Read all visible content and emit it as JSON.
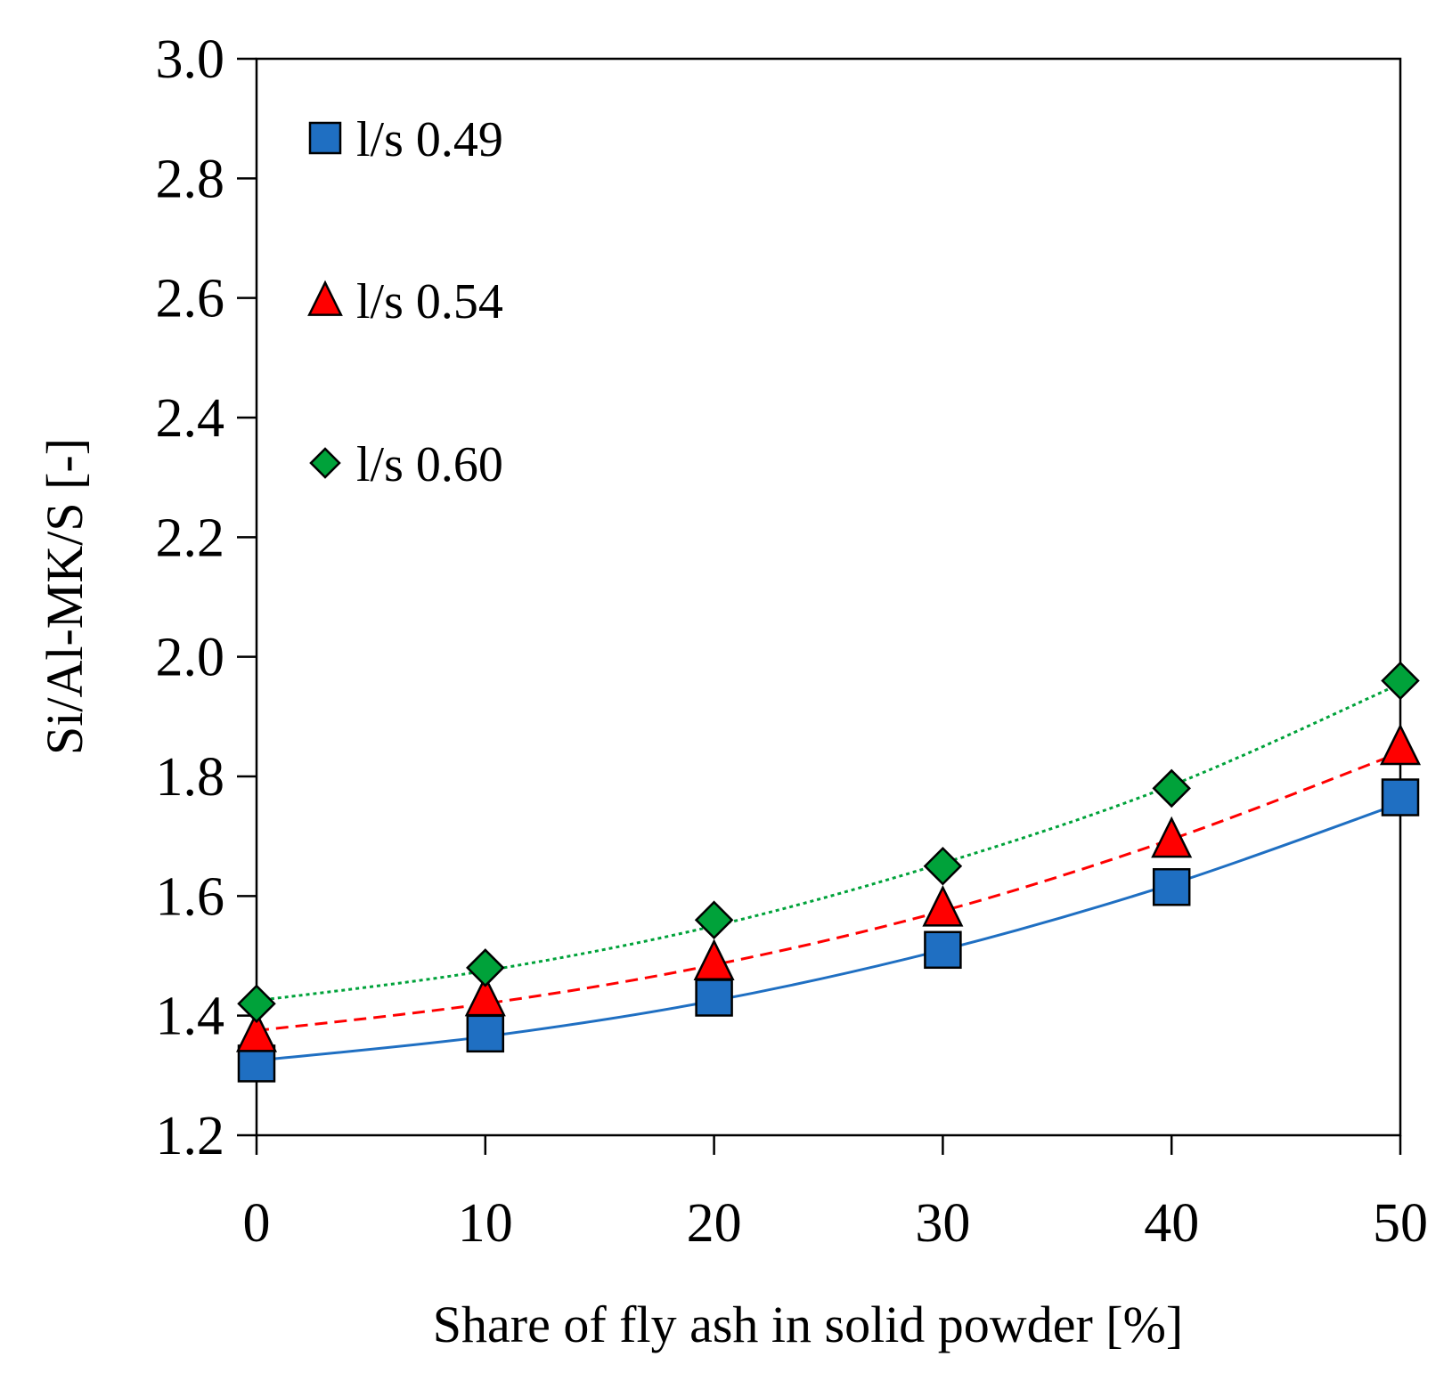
{
  "chart_data": {
    "type": "scatter",
    "title": "",
    "xlabel": "Share of fly ash in solid powder [%]",
    "ylabel": "Si/Al-MK/S [-]",
    "xlim": [
      0,
      50
    ],
    "ylim": [
      1.2,
      3.0
    ],
    "x_ticks": [
      "0",
      "10",
      "20",
      "30",
      "40",
      "50"
    ],
    "y_ticks": [
      "1.2",
      "1.4",
      "1.6",
      "1.8",
      "2.0",
      "2.2",
      "2.4",
      "2.6",
      "2.8",
      "3.0"
    ],
    "grid": false,
    "legend_position": "top-left",
    "x": [
      0,
      10,
      20,
      30,
      40,
      50
    ],
    "series": [
      {
        "name": "l/s 0.49",
        "marker": "square",
        "color": "#1f6fc2",
        "line_style": "solid",
        "values": [
          1.32,
          1.37,
          1.43,
          1.51,
          1.615,
          1.765
        ],
        "trend": [
          1.325,
          1.365,
          1.425,
          1.51,
          1.62,
          1.755
        ]
      },
      {
        "name": "l/s 0.54",
        "marker": "triangle",
        "color": "#ff0000",
        "line_style": "dashed",
        "values": [
          1.37,
          1.43,
          1.49,
          1.58,
          1.695,
          1.85
        ],
        "trend": [
          1.375,
          1.42,
          1.485,
          1.575,
          1.695,
          1.84
        ]
      },
      {
        "name": "l/s 0.60",
        "marker": "diamond",
        "color": "#00a23a",
        "line_style": "dotted",
        "values": [
          1.42,
          1.48,
          1.56,
          1.65,
          1.78,
          1.96
        ],
        "trend": [
          1.425,
          1.475,
          1.55,
          1.655,
          1.785,
          1.955
        ]
      }
    ]
  }
}
